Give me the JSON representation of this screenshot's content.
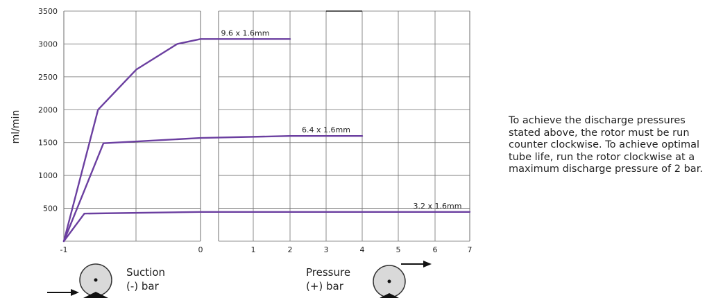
{
  "chart_data": {
    "type": "line",
    "ylabel": "ml/min",
    "y_ticks": [
      500,
      1000,
      1500,
      2000,
      2500,
      3000,
      3500
    ],
    "ylim": [
      0,
      3500
    ],
    "x_ticks_suction": [
      "-1",
      "0"
    ],
    "x_ticks_pressure": [
      "1",
      "2",
      "3",
      "4",
      "5",
      "6",
      "7"
    ],
    "grid": true,
    "series": [
      {
        "name": "9.6 x 1.6mm",
        "color": "#6b3fa0",
        "points": [
          [
            -1,
            0
          ],
          [
            -0.75,
            2000
          ],
          [
            -0.47,
            2610
          ],
          [
            -0.17,
            3000
          ],
          [
            0,
            3075
          ],
          [
            2,
            3075
          ]
        ]
      },
      {
        "name": "6.4 x 1.6mm",
        "color": "#6b3fa0",
        "points": [
          [
            -1,
            0
          ],
          [
            -0.71,
            1490
          ],
          [
            0,
            1570
          ],
          [
            2,
            1600
          ],
          [
            4,
            1600
          ]
        ]
      },
      {
        "name": "3.2 x 1.6mm",
        "color": "#6b3fa0",
        "points": [
          [
            -1,
            0
          ],
          [
            -0.85,
            420
          ],
          [
            0,
            445
          ],
          [
            7,
            445
          ]
        ]
      }
    ]
  },
  "captions": {
    "suction_line1": "Suction",
    "suction_line2": "(-) bar",
    "pressure_line1": "Pressure",
    "pressure_line2": "(+) bar"
  },
  "note": "To achieve the discharge pressures stated above, the rotor must be run counter clockwise.  To achieve optimal tube life, run the rotor clockwise at a maximum discharge pressure of 2 bar."
}
